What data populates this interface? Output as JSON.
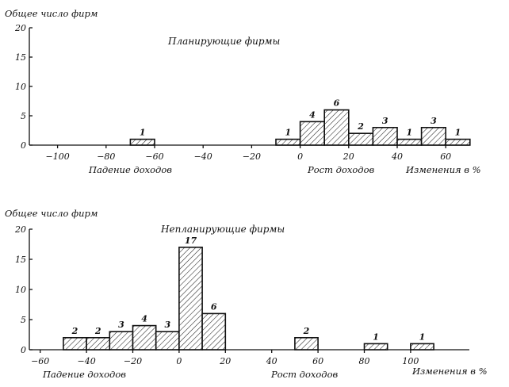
{
  "chart_data": [
    {
      "type": "bar",
      "title": "Планирующие фирмы",
      "ylabel": "Общее число фирм",
      "xlabel": "Изменения в %",
      "left_note": "Падение доходов",
      "right_note": "Рост доходов",
      "x_ticks": [
        "-100",
        "-80",
        "-60",
        "-40",
        "-20",
        "0",
        "20",
        "40",
        "60"
      ],
      "y_ticks": [
        "0",
        "5",
        "10",
        "15",
        "20"
      ],
      "xlim": [
        -110,
        70
      ],
      "ylim": [
        0,
        20
      ],
      "bars": [
        {
          "from": -70,
          "to": -60,
          "value": 1,
          "label": "1"
        },
        {
          "from": -10,
          "to": 0,
          "value": 1,
          "label": "1"
        },
        {
          "from": 0,
          "to": 10,
          "value": 4,
          "label": "4"
        },
        {
          "from": 10,
          "to": 20,
          "value": 6,
          "label": "6"
        },
        {
          "from": 20,
          "to": 30,
          "value": 2,
          "label": "2"
        },
        {
          "from": 30,
          "to": 40,
          "value": 3,
          "label": "3"
        },
        {
          "from": 40,
          "to": 50,
          "value": 1,
          "label": "1"
        },
        {
          "from": 50,
          "to": 60,
          "value": 3,
          "label": "3"
        },
        {
          "from": 60,
          "to": 70,
          "value": 1,
          "label": "1"
        }
      ]
    },
    {
      "type": "bar",
      "title": "Непланирующие фирмы",
      "ylabel": "Общее число фирм",
      "xlabel": "Изменения в %",
      "left_note": "Падение доходов",
      "right_note": "Рост доходов",
      "x_ticks": [
        "-60",
        "-40",
        "-20",
        "0",
        "20",
        "40",
        "60",
        "80",
        "100"
      ],
      "y_ticks": [
        "0",
        "5",
        "10",
        "15",
        "20"
      ],
      "xlim": [
        -70,
        110
      ],
      "ylim": [
        0,
        20
      ],
      "bars": [
        {
          "from": -50,
          "to": -40,
          "value": 2,
          "label": "2"
        },
        {
          "from": -40,
          "to": -30,
          "value": 2,
          "label": "2"
        },
        {
          "from": -30,
          "to": -20,
          "value": 3,
          "label": "3"
        },
        {
          "from": -20,
          "to": -10,
          "value": 4,
          "label": "4"
        },
        {
          "from": -10,
          "to": 0,
          "value": 3,
          "label": "3"
        },
        {
          "from": 0,
          "to": 10,
          "value": 17,
          "label": "17"
        },
        {
          "from": 10,
          "to": 20,
          "value": 6,
          "label": "6"
        },
        {
          "from": 50,
          "to": 60,
          "value": 2,
          "label": "2"
        },
        {
          "from": 80,
          "to": 90,
          "value": 1,
          "label": "1"
        },
        {
          "from": 100,
          "to": 110,
          "value": 1,
          "label": "1"
        }
      ]
    }
  ]
}
